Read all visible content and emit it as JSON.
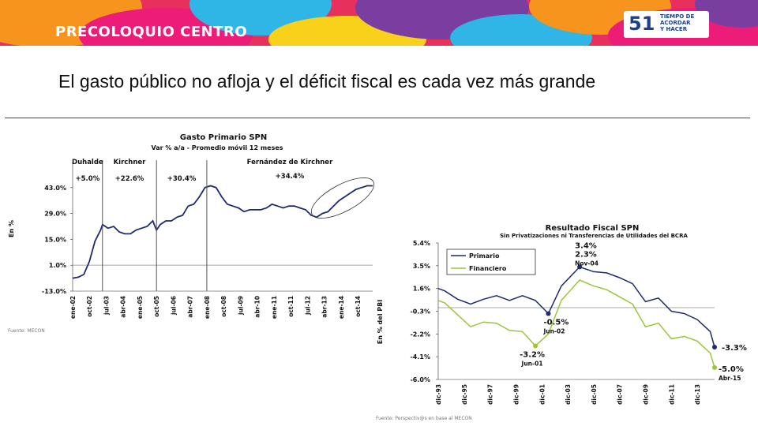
{
  "header": {
    "brand": "PRECOLOQUIO CENTRO",
    "badge_number": "51",
    "badge_text": "TIEMPO DE\nACORDAR\nY HACER"
  },
  "slide_title": "El gasto público no afloja y el déficit fiscal es cada vez más grande",
  "colors": {
    "primario": "#1f2a6e",
    "financiero": "#9dc43a",
    "ref_line": "#b3b3b3",
    "vline": "#555555"
  },
  "chart_data": [
    {
      "type": "line",
      "title": "Gasto Primario SPN",
      "subtitle": "Var % a/a - Promedio móvil 12 meses",
      "ylabel": "En %",
      "ylim": [
        -13,
        57
      ],
      "y_ticks": [
        -13.0,
        1.0,
        15.0,
        29.0,
        43.0
      ],
      "y_tick_labels": [
        "-13.0%",
        "1.0%",
        "15.0%",
        "29.0%",
        "43.0%"
      ],
      "x_range": [
        "2002-01",
        "2015-06"
      ],
      "x_ticks": [
        "ene-02",
        "oct-02",
        "jul-03",
        "abr-04",
        "ene-05",
        "oct-05",
        "jul-06",
        "abr-07",
        "ene-08",
        "oct-08",
        "jul-09",
        "abr-10",
        "ene-11",
        "oct-11",
        "jul-12",
        "abr-13",
        "ene-14",
        "oct-14"
      ],
      "reference_line": 1.0,
      "periods": [
        {
          "name": "Duhalde",
          "change": "+5.0%",
          "divider": "2003-05"
        },
        {
          "name": "Kirchner",
          "change": "+22.6%",
          "divider": "2005-10"
        },
        {
          "name": "",
          "change": "+30.4%",
          "divider": "2008-01"
        },
        {
          "name": "Fernández de Kirchner",
          "change": "+34.4%",
          "divider": null
        }
      ],
      "series": [
        {
          "values": [
            [
              "2002-01",
              -6
            ],
            [
              "2002-04",
              -5.5
            ],
            [
              "2002-07",
              -4
            ],
            [
              "2002-10",
              3
            ],
            [
              "2003-01",
              14
            ],
            [
              "2003-04",
              20
            ],
            [
              "2003-05",
              23
            ],
            [
              "2003-08",
              21
            ],
            [
              "2003-11",
              22
            ],
            [
              "2004-02",
              19
            ],
            [
              "2004-05",
              18
            ],
            [
              "2004-08",
              18
            ],
            [
              "2004-11",
              20
            ],
            [
              "2005-02",
              21
            ],
            [
              "2005-05",
              22
            ],
            [
              "2005-08",
              25
            ],
            [
              "2005-10",
              20
            ],
            [
              "2005-12",
              23
            ],
            [
              "2006-03",
              25
            ],
            [
              "2006-06",
              25
            ],
            [
              "2006-09",
              27
            ],
            [
              "2006-12",
              28
            ],
            [
              "2007-03",
              33
            ],
            [
              "2007-06",
              34
            ],
            [
              "2007-09",
              38
            ],
            [
              "2007-12",
              43
            ],
            [
              "2008-03",
              44
            ],
            [
              "2008-06",
              43
            ],
            [
              "2008-09",
              38
            ],
            [
              "2008-12",
              34
            ],
            [
              "2009-03",
              33
            ],
            [
              "2009-06",
              32
            ],
            [
              "2009-09",
              30
            ],
            [
              "2009-12",
              31
            ],
            [
              "2010-03",
              31
            ],
            [
              "2010-06",
              31
            ],
            [
              "2010-09",
              32
            ],
            [
              "2010-12",
              34
            ],
            [
              "2011-03",
              33
            ],
            [
              "2011-06",
              32
            ],
            [
              "2011-09",
              33
            ],
            [
              "2011-12",
              33
            ],
            [
              "2012-03",
              32
            ],
            [
              "2012-06",
              31
            ],
            [
              "2012-09",
              28
            ],
            [
              "2012-12",
              27
            ],
            [
              "2013-03",
              29
            ],
            [
              "2013-06",
              30
            ],
            [
              "2013-09",
              33
            ],
            [
              "2013-12",
              36
            ],
            [
              "2014-03",
              38
            ],
            [
              "2014-06",
              40
            ],
            [
              "2014-09",
              42
            ],
            [
              "2014-12",
              43
            ],
            [
              "2015-03",
              44
            ],
            [
              "2015-06",
              44
            ]
          ]
        }
      ],
      "highlight": "ellipse around 2013-2015",
      "source": "Fuente: MECON"
    },
    {
      "type": "line",
      "title": "Resultado Fiscal SPN",
      "subtitle": "Sin Privatizaciones ni Transferencias de Utilidades del BCRA",
      "ylabel": "En % del PBI",
      "ylim": [
        -6.0,
        5.4
      ],
      "y_ticks": [
        -6.0,
        -4.1,
        -2.2,
        -0.3,
        1.6,
        3.5,
        5.4
      ],
      "y_tick_labels": [
        "-6.0%",
        "-4.1%",
        "-2.2%",
        "-0.3%",
        "1.6%",
        "3.5%",
        "5.4%"
      ],
      "x_range": [
        "1993-12",
        "2015-04"
      ],
      "x_ticks": [
        "dic-93",
        "dic-95",
        "dic-97",
        "dic-99",
        "dic-01",
        "dic-03",
        "dic-05",
        "dic-07",
        "dic-09",
        "dic-11",
        "dic-13"
      ],
      "reference_line": 0.0,
      "legend": [
        "Primario",
        "Financiero"
      ],
      "annotations": [
        {
          "text": [
            "3.4%",
            "2.3%",
            "Nov-04"
          ],
          "x": "2004-11"
        },
        {
          "text": [
            "-0.5%",
            "Jun-02"
          ],
          "x": "2002-06"
        },
        {
          "text": [
            "-3.2%",
            "Jun-01"
          ],
          "x": "2001-06"
        },
        {
          "text": [
            "-3.3%"
          ],
          "x": "2015-04"
        },
        {
          "text": [
            "-5.0%",
            "Abr-15"
          ],
          "x": "2015-04"
        }
      ],
      "series": [
        {
          "name": "Primario",
          "values": [
            [
              "1993-12",
              1.6
            ],
            [
              "1994-06",
              1.4
            ],
            [
              "1995-06",
              0.7
            ],
            [
              "1996-06",
              0.3
            ],
            [
              "1997-06",
              0.7
            ],
            [
              "1998-06",
              1.0
            ],
            [
              "1999-06",
              0.6
            ],
            [
              "2000-06",
              1.0
            ],
            [
              "2001-06",
              0.6
            ],
            [
              "2002-06",
              -0.5
            ],
            [
              "2003-06",
              1.8
            ],
            [
              "2004-11",
              3.4
            ],
            [
              "2005-12",
              3.0
            ],
            [
              "2006-12",
              2.9
            ],
            [
              "2007-12",
              2.5
            ],
            [
              "2008-12",
              2.0
            ],
            [
              "2009-12",
              0.5
            ],
            [
              "2010-12",
              0.8
            ],
            [
              "2011-12",
              -0.3
            ],
            [
              "2012-12",
              -0.5
            ],
            [
              "2013-12",
              -1.0
            ],
            [
              "2014-12",
              -2.0
            ],
            [
              "2015-04",
              -3.3
            ]
          ]
        },
        {
          "name": "Financiero",
          "values": [
            [
              "1993-12",
              0.6
            ],
            [
              "1994-06",
              0.4
            ],
            [
              "1995-06",
              -0.6
            ],
            [
              "1996-06",
              -1.6
            ],
            [
              "1997-06",
              -1.2
            ],
            [
              "1998-06",
              -1.3
            ],
            [
              "1999-06",
              -1.9
            ],
            [
              "2000-06",
              -2.0
            ],
            [
              "2001-06",
              -3.2
            ],
            [
              "2002-06",
              -2.2
            ],
            [
              "2003-06",
              0.6
            ],
            [
              "2004-11",
              2.3
            ],
            [
              "2005-12",
              1.8
            ],
            [
              "2006-12",
              1.5
            ],
            [
              "2007-12",
              0.9
            ],
            [
              "2008-12",
              0.3
            ],
            [
              "2009-12",
              -1.6
            ],
            [
              "2010-12",
              -1.3
            ],
            [
              "2011-12",
              -2.6
            ],
            [
              "2012-12",
              -2.4
            ],
            [
              "2013-12",
              -2.8
            ],
            [
              "2014-12",
              -3.8
            ],
            [
              "2015-04",
              -5.0
            ]
          ]
        }
      ],
      "source": "Fuente: Perspectiv@s en base al MECON"
    }
  ]
}
